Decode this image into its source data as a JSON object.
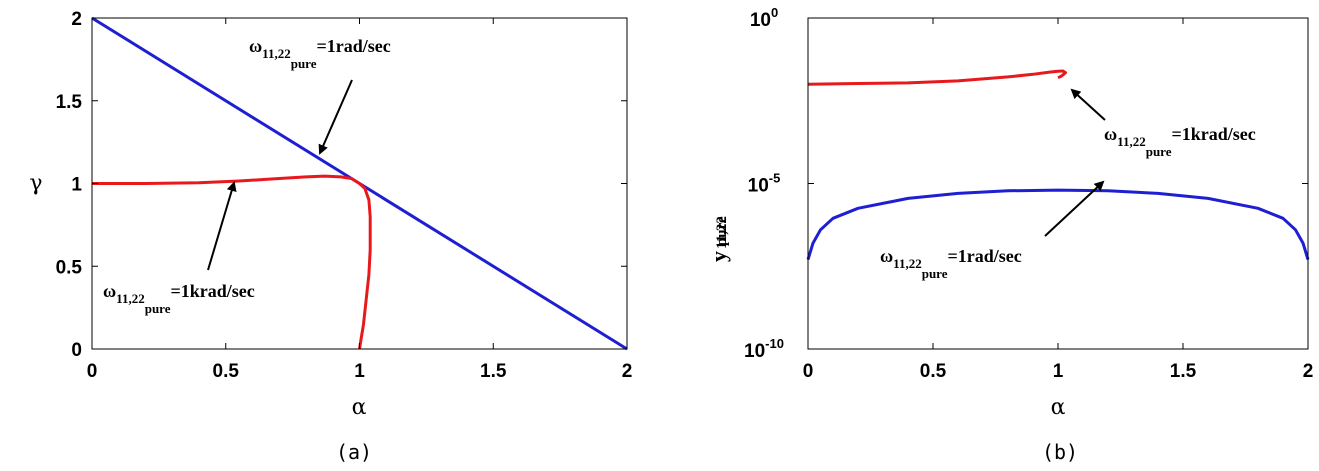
{
  "colors": {
    "red_series": "#e8191c",
    "blue_series": "#1e1ed2",
    "axis": "#000000",
    "background": "#ffffff"
  },
  "chart_data": [
    {
      "panel": "(a)",
      "type": "line",
      "xlabel": "α",
      "ylabel": "γ",
      "xlim": [
        0,
        2
      ],
      "ylim": [
        0,
        2
      ],
      "xticks": [
        "0",
        "0.5",
        "1",
        "1.5",
        "2"
      ],
      "yticks": [
        "0",
        "0.5",
        "1",
        "1.5",
        "2"
      ],
      "grid": false,
      "series": [
        {
          "color": "#1e1ed2",
          "x": [
            0,
            2
          ],
          "y": [
            2,
            0
          ]
        },
        {
          "color": "#e8191c",
          "x": [
            0,
            0.2,
            0.4,
            0.55,
            0.7,
            0.8,
            0.87,
            0.93,
            0.97,
            1.0,
            1.02,
            1.035,
            1.04,
            1.04,
            1.035,
            1.025,
            1.015,
            1.005,
            1.0
          ],
          "y": [
            1.0,
            1.0,
            1.005,
            1.015,
            1.03,
            1.04,
            1.045,
            1.04,
            1.03,
            1.0,
            0.97,
            0.9,
            0.8,
            0.6,
            0.45,
            0.3,
            0.15,
            0.05,
            0.0
          ]
        }
      ],
      "annotations": [
        {
          "base": "ω",
          "sub": "11,22",
          "subsub": "pure",
          "tail": "=1rad/sec",
          "arrow_to": [
            0.87,
            1.13
          ]
        },
        {
          "base": "ω",
          "sub": "11,22",
          "subsub": "pure",
          "tail": "=1krad/sec",
          "arrow_to": [
            0.55,
            1.03
          ]
        }
      ]
    },
    {
      "panel": "(b)",
      "type": "line",
      "xlabel": "α",
      "ylabel": {
        "base": "y",
        "sub": "11,22",
        "subsub": "pure"
      },
      "xlim": [
        0,
        2
      ],
      "yscale": "log",
      "ylim_exp": [
        -10,
        0
      ],
      "xticks": [
        "0",
        "0.5",
        "1",
        "1.5",
        "2"
      ],
      "yticks": [
        {
          "base": "10",
          "exp": "0",
          "value": 0
        },
        {
          "base": "10",
          "exp": "-5",
          "value": -5
        },
        {
          "base": "10",
          "exp": "-10",
          "value": -10
        }
      ],
      "grid": false,
      "series": [
        {
          "color": "#e8191c",
          "x": [
            0,
            0.2,
            0.4,
            0.6,
            0.8,
            0.9,
            0.97,
            1.0,
            1.02,
            1.03,
            1.02,
            1.01,
            1.0
          ],
          "y_log10": [
            -2.0,
            -1.98,
            -1.96,
            -1.9,
            -1.78,
            -1.7,
            -1.63,
            -1.61,
            -1.6,
            -1.65,
            -1.72,
            -1.77,
            -1.8
          ]
        },
        {
          "color": "#1e1ed2",
          "x": [
            0,
            0.02,
            0.05,
            0.1,
            0.2,
            0.4,
            0.6,
            0.8,
            1.0,
            1.2,
            1.4,
            1.6,
            1.8,
            1.9,
            1.95,
            1.98,
            2.0
          ],
          "y_log10": [
            -7.3,
            -6.8,
            -6.4,
            -6.05,
            -5.75,
            -5.45,
            -5.3,
            -5.22,
            -5.2,
            -5.22,
            -5.3,
            -5.45,
            -5.75,
            -6.05,
            -6.4,
            -6.8,
            -7.3
          ]
        }
      ],
      "annotations": [
        {
          "base": "ω",
          "sub": "11,22",
          "subsub": "pure",
          "tail": "=1krad/sec",
          "arrow_to": [
            1.04,
            -1.72
          ]
        },
        {
          "base": "ω",
          "sub": "11,22",
          "subsub": "pure",
          "tail": "=1rad/sec",
          "arrow_to": [
            1.18,
            -5.22
          ]
        }
      ]
    }
  ]
}
